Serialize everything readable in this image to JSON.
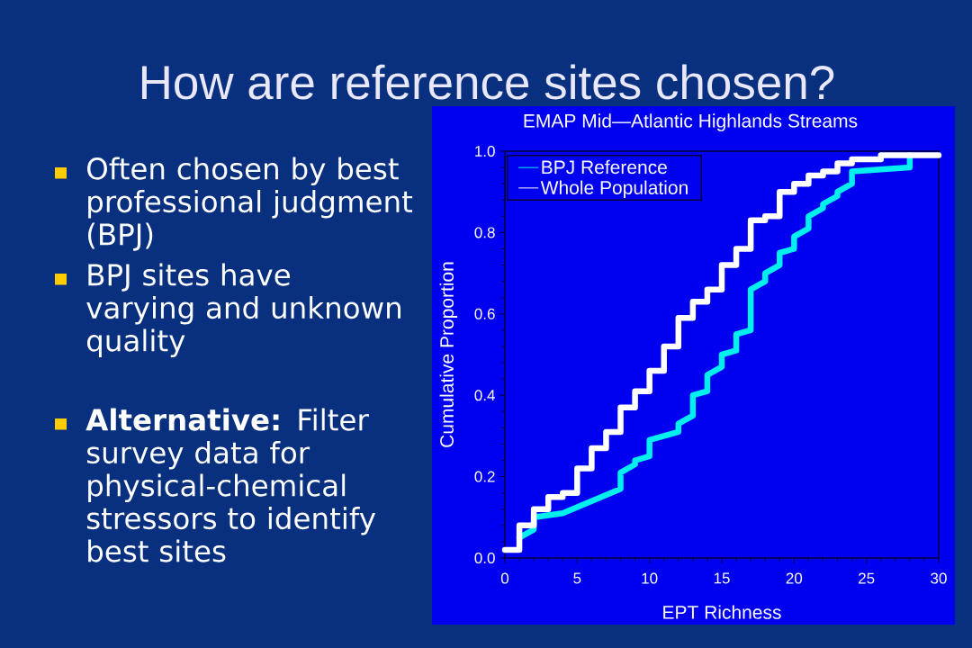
{
  "chart_data": {
    "type": "step",
    "title": "How are reference sites chosen?",
    "subtitle": "EMAP Mid—Atlantic Highlands Streams",
    "xlabel": "EPT Richness",
    "ylabel": "Cumulative Proportion",
    "annotations": [
      "Often chosen by best professional judgment (BPJ)",
      "BPJ sites have varying and unknown quality",
      "**Alternative:** Filter survey data for physical-chemical stressors to identify best sites"
    ],
    "series": [
      {
        "name": "BPJ Reference",
        "color": "#00f0f0",
        "type": "line",
        "x": [
          1,
          2,
          2,
          4,
          8,
          8,
          9,
          9,
          10,
          10,
          12,
          12,
          13,
          13,
          14,
          14,
          15,
          15,
          16,
          16,
          17,
          17,
          18,
          18,
          19,
          19,
          20,
          20,
          21,
          21,
          22,
          22,
          23,
          23,
          24,
          24,
          28,
          28
        ],
        "values": [
          0.05,
          0.07,
          0.1,
          0.11,
          0.17,
          0.21,
          0.23,
          0.24,
          0.25,
          0.29,
          0.31,
          0.33,
          0.35,
          0.4,
          0.41,
          0.45,
          0.47,
          0.5,
          0.51,
          0.55,
          0.56,
          0.66,
          0.68,
          0.7,
          0.72,
          0.75,
          0.76,
          0.79,
          0.81,
          0.84,
          0.86,
          0.87,
          0.89,
          0.9,
          0.92,
          0.95,
          0.96,
          0.99
        ]
      },
      {
        "name": "Whole Population",
        "color": "#ffffff",
        "x": [
          0,
          1,
          2,
          3,
          4,
          5,
          6,
          7,
          8,
          9,
          10,
          11,
          12,
          13,
          14,
          15,
          16,
          17,
          18,
          19,
          20,
          21,
          22,
          23,
          24,
          25,
          26,
          27,
          28,
          29,
          30
        ],
        "values": [
          0.02,
          0.08,
          0.12,
          0.15,
          0.16,
          0.22,
          0.27,
          0.31,
          0.37,
          0.41,
          0.46,
          0.52,
          0.59,
          0.63,
          0.66,
          0.72,
          0.76,
          0.83,
          0.84,
          0.9,
          0.92,
          0.94,
          0.95,
          0.97,
          0.98,
          0.98,
          0.99,
          0.99,
          0.99,
          0.99,
          0.99
        ]
      }
    ],
    "xlim": [
      0,
      30
    ],
    "ylim": [
      0,
      1
    ],
    "xticks": [
      0,
      5,
      10,
      15,
      20,
      25,
      30
    ],
    "yticks": [
      {
        "value": 0,
        "label": "0.0"
      },
      0.2,
      0.4,
      0.6,
      0.8,
      {
        "value": 1,
        "label": "1.0"
      }
    ],
    "legend": "top left"
  }
}
